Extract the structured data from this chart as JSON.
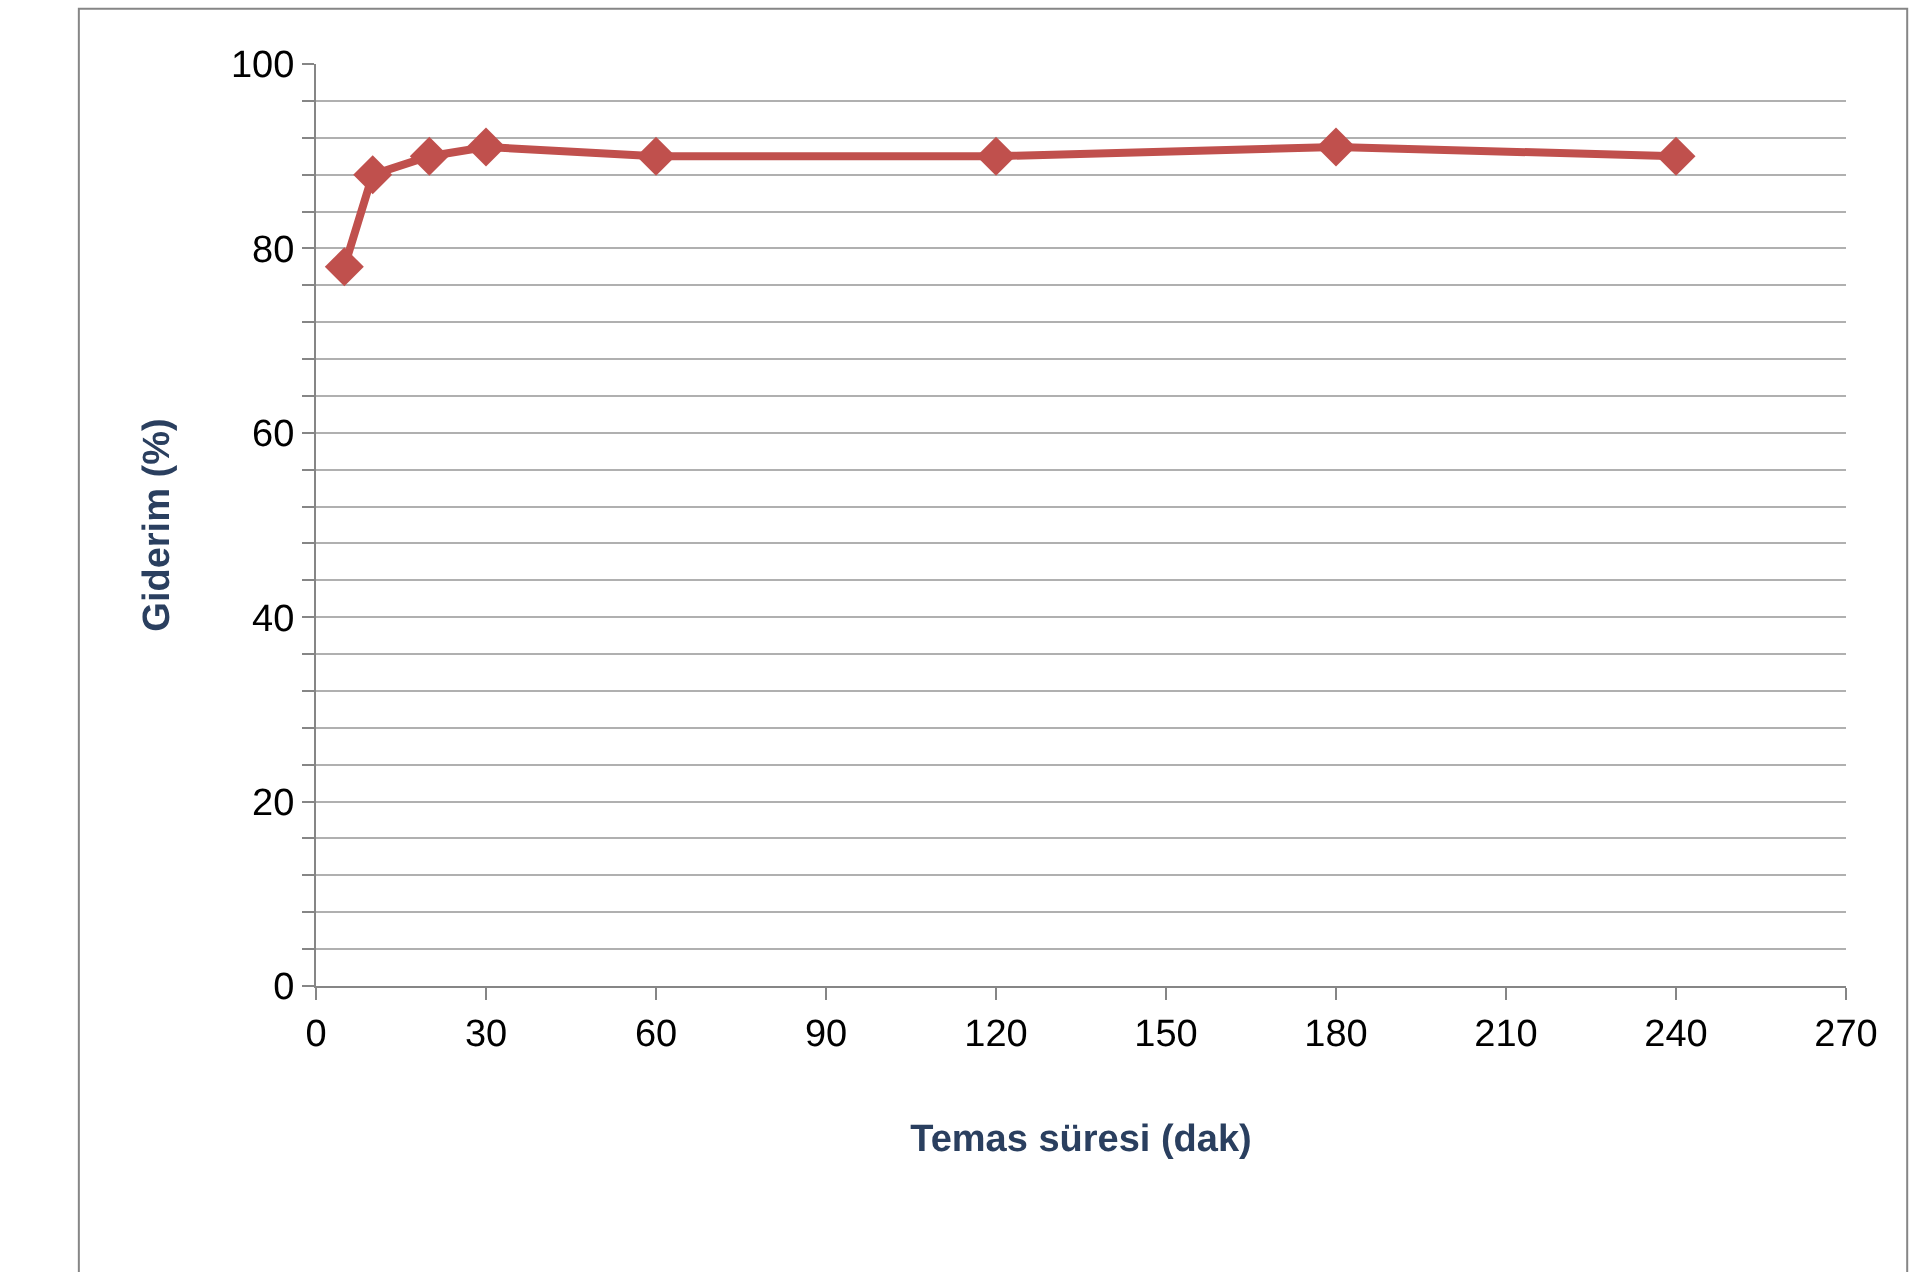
{
  "chart_data": {
    "type": "line",
    "xlabel": "Temas süresi (dak)",
    "ylabel": "Giderim (%)",
    "x": [
      5,
      10,
      20,
      30,
      60,
      120,
      180,
      240
    ],
    "series": [
      {
        "color": "#c0504d",
        "values": [
          78,
          88,
          90,
          91,
          90,
          90,
          91,
          90
        ]
      }
    ],
    "xlim": [
      0,
      270
    ],
    "xticks": [
      0,
      30,
      60,
      90,
      120,
      150,
      180,
      210,
      240,
      270
    ],
    "ylim": [
      0,
      100
    ],
    "yticks": [
      0,
      {
        "value": 4,
        "label": null
      },
      {
        "value": 8,
        "label": null
      },
      {
        "value": 12,
        "label": null
      },
      {
        "value": 16,
        "label": null
      },
      20,
      {
        "value": 24,
        "label": null
      },
      {
        "value": 28,
        "label": null
      },
      {
        "value": 32,
        "label": null
      },
      {
        "value": 36,
        "label": null
      },
      40,
      {
        "value": 44,
        "label": null
      },
      {
        "value": 48,
        "label": null
      },
      {
        "value": 52,
        "label": null
      },
      {
        "value": 56,
        "label": null
      },
      60,
      {
        "value": 64,
        "label": null
      },
      {
        "value": 68,
        "label": null
      },
      {
        "value": 72,
        "label": null
      },
      {
        "value": 76,
        "label": null
      },
      80,
      {
        "value": 84,
        "label": null
      },
      {
        "value": 88,
        "label": null
      },
      {
        "value": 92,
        "label": null
      },
      {
        "value": 96,
        "label": null
      },
      100
    ],
    "grid": "y",
    "marker": "diamond",
    "line_style": "solid",
    "legend": false
  }
}
